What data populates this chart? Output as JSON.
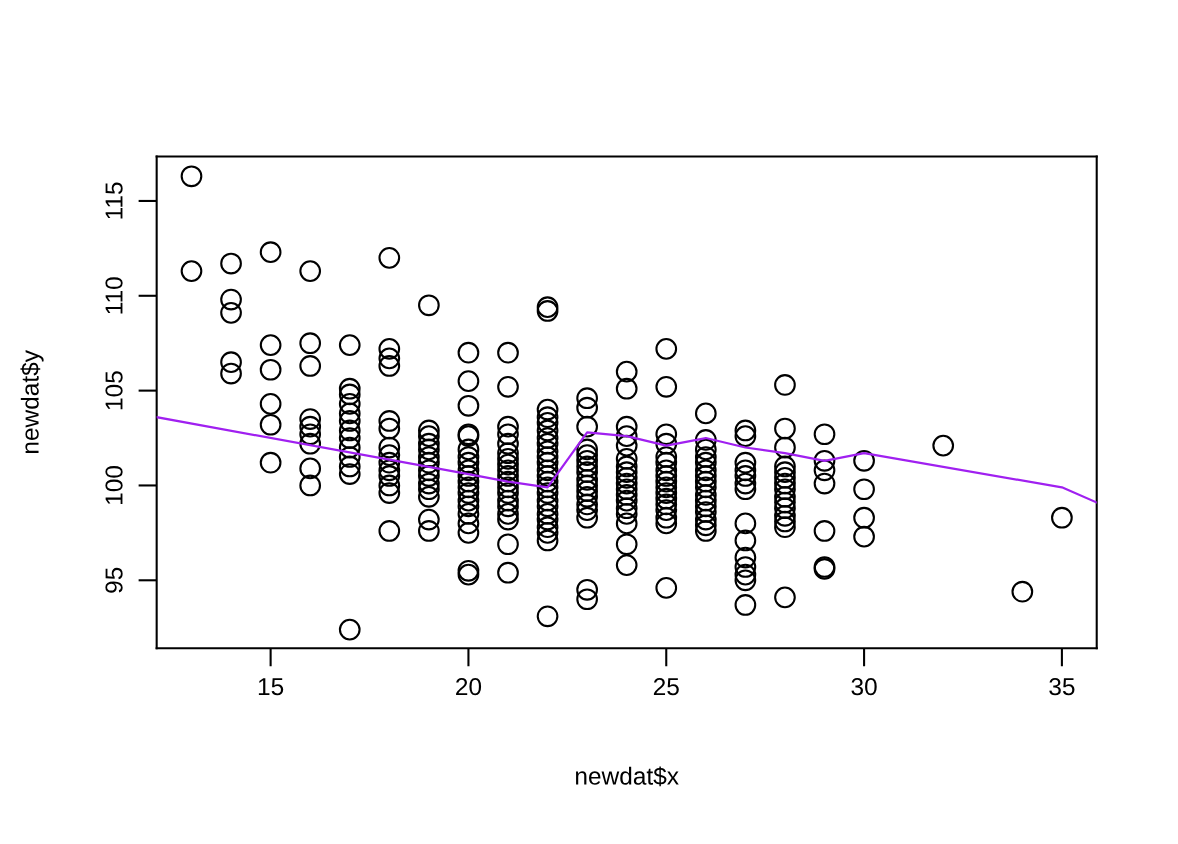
{
  "chart_data": {
    "type": "scatter",
    "xlabel": "newdat$x",
    "ylabel": "newdat$y",
    "xlim": [
      12.12,
      35.88
    ],
    "ylim": [
      91.42,
      117.34
    ],
    "xticks": [
      15,
      20,
      25,
      30,
      35
    ],
    "yticks": [
      95,
      100,
      105,
      110,
      115
    ],
    "series": [
      {
        "color": "#000000",
        "marker": "circle",
        "x": [
          13,
          13,
          14,
          14,
          14,
          14,
          14,
          15,
          15,
          15,
          15,
          15,
          15,
          16,
          16,
          16,
          16,
          16,
          16,
          16,
          16,
          16,
          17,
          17,
          17,
          17,
          17,
          17,
          17,
          17,
          17,
          17,
          17,
          17,
          17,
          18,
          18,
          18,
          18,
          18,
          18,
          18,
          18,
          18,
          18,
          18,
          18,
          18,
          18,
          19,
          19,
          19,
          19,
          19,
          19,
          19,
          19,
          19,
          19,
          19,
          19,
          19,
          19,
          20,
          20,
          20,
          20,
          20,
          20,
          20,
          20,
          20,
          20,
          20,
          20,
          20,
          20,
          20,
          20,
          20,
          20,
          20,
          20,
          21,
          21,
          21,
          21,
          21,
          21,
          21,
          21,
          21,
          21,
          21,
          21,
          21,
          21,
          21,
          21,
          21,
          21,
          21,
          22,
          22,
          22,
          22,
          22,
          22,
          22,
          22,
          22,
          22,
          22,
          22,
          22,
          22,
          22,
          22,
          22,
          22,
          22,
          22,
          22,
          22,
          22,
          22,
          23,
          23,
          23,
          23,
          23,
          23,
          23,
          23,
          23,
          23,
          23,
          23,
          23,
          23,
          23,
          23,
          23,
          24,
          24,
          24,
          24,
          24,
          24,
          24,
          24,
          24,
          24,
          24,
          24,
          24,
          24,
          24,
          24,
          24,
          24,
          25,
          25,
          25,
          25,
          25,
          25,
          25,
          25,
          25,
          25,
          25,
          25,
          25,
          25,
          25,
          25,
          25,
          26,
          26,
          26,
          26,
          26,
          26,
          26,
          26,
          26,
          26,
          26,
          26,
          26,
          26,
          26,
          26,
          27,
          27,
          27,
          27,
          27,
          27,
          27,
          27,
          27,
          27,
          27,
          27,
          27,
          27,
          28,
          28,
          28,
          28,
          28,
          28,
          28,
          28,
          28,
          28,
          28,
          28,
          28,
          28,
          28,
          29,
          29,
          29,
          29,
          29,
          29,
          29,
          30,
          30,
          30,
          30,
          32,
          34,
          35
        ],
        "values": [
          116.3,
          111.3,
          111.7,
          109.8,
          109.1,
          106.5,
          105.9,
          112.3,
          107.4,
          106.1,
          104.3,
          103.2,
          101.2,
          111.3,
          107.5,
          106.3,
          103.5,
          103.1,
          102.7,
          102.2,
          100.9,
          100.0,
          107.4,
          105.1,
          104.8,
          104.3,
          103.8,
          103.4,
          102.9,
          102.5,
          102.0,
          101.5,
          101.0,
          100.6,
          92.4,
          112.0,
          107.2,
          106.7,
          106.3,
          103.4,
          103.0,
          102.0,
          101.6,
          101.2,
          100.8,
          100.5,
          100.0,
          99.6,
          97.6,
          109.5,
          102.9,
          102.6,
          102.2,
          101.9,
          101.5,
          101.2,
          100.8,
          100.5,
          100.1,
          99.8,
          99.4,
          98.2,
          97.6,
          107.0,
          105.5,
          104.2,
          102.7,
          102.6,
          101.9,
          101.5,
          101.2,
          100.8,
          100.5,
          100.2,
          99.9,
          99.6,
          99.2,
          98.9,
          98.5,
          98.0,
          97.5,
          95.5,
          95.3,
          107.0,
          105.2,
          103.1,
          102.7,
          102.2,
          101.7,
          101.4,
          101.1,
          100.8,
          100.5,
          100.2,
          99.9,
          99.6,
          99.2,
          98.9,
          98.5,
          98.2,
          96.9,
          95.4,
          109.4,
          109.2,
          104.0,
          103.6,
          103.3,
          102.9,
          102.5,
          102.2,
          101.8,
          101.5,
          101.2,
          100.8,
          100.5,
          100.2,
          99.9,
          99.6,
          99.2,
          98.9,
          98.5,
          98.2,
          97.8,
          97.5,
          97.1,
          93.1,
          104.6,
          104.1,
          103.1,
          101.9,
          101.6,
          101.3,
          101.0,
          100.7,
          100.3,
          100.0,
          99.7,
          99.4,
          99.0,
          98.7,
          98.3,
          94.5,
          94.0,
          106.0,
          105.1,
          103.1,
          102.6,
          102.1,
          101.4,
          101.0,
          100.7,
          100.4,
          100.1,
          99.8,
          99.5,
          99.2,
          98.8,
          98.5,
          98.0,
          96.9,
          95.8,
          107.2,
          105.2,
          102.7,
          102.2,
          101.5,
          101.2,
          100.8,
          100.5,
          100.2,
          99.9,
          99.6,
          99.3,
          99.0,
          98.7,
          98.3,
          98.0,
          94.6,
          103.8,
          102.4,
          101.9,
          101.5,
          101.2,
          100.8,
          100.5,
          100.2,
          99.9,
          99.5,
          99.2,
          98.9,
          98.6,
          98.2,
          97.9,
          97.6,
          102.9,
          102.6,
          101.2,
          100.8,
          100.5,
          100.1,
          99.8,
          98.0,
          97.1,
          96.2,
          95.7,
          95.3,
          95.0,
          93.7,
          105.3,
          103.0,
          102.0,
          101.0,
          100.7,
          100.4,
          100.1,
          99.8,
          99.4,
          99.1,
          98.8,
          98.4,
          98.1,
          97.8,
          94.1,
          102.7,
          101.3,
          100.8,
          100.1,
          97.6,
          95.7,
          95.6,
          101.3,
          99.8,
          98.3,
          97.3,
          102.1,
          94.4,
          98.3
        ]
      },
      {
        "type": "line",
        "color": "#a020f0",
        "marker": "none",
        "line_style": "solid",
        "x": [
          12.12,
          20,
          21,
          22,
          23,
          24,
          25,
          26,
          27,
          28,
          29,
          30,
          35,
          35.88
        ],
        "values": [
          103.6,
          100.6,
          100.2,
          99.9,
          102.8,
          102.6,
          102.1,
          102.5,
          102.0,
          101.7,
          101.3,
          101.7,
          99.9,
          99.1
        ]
      }
    ]
  }
}
